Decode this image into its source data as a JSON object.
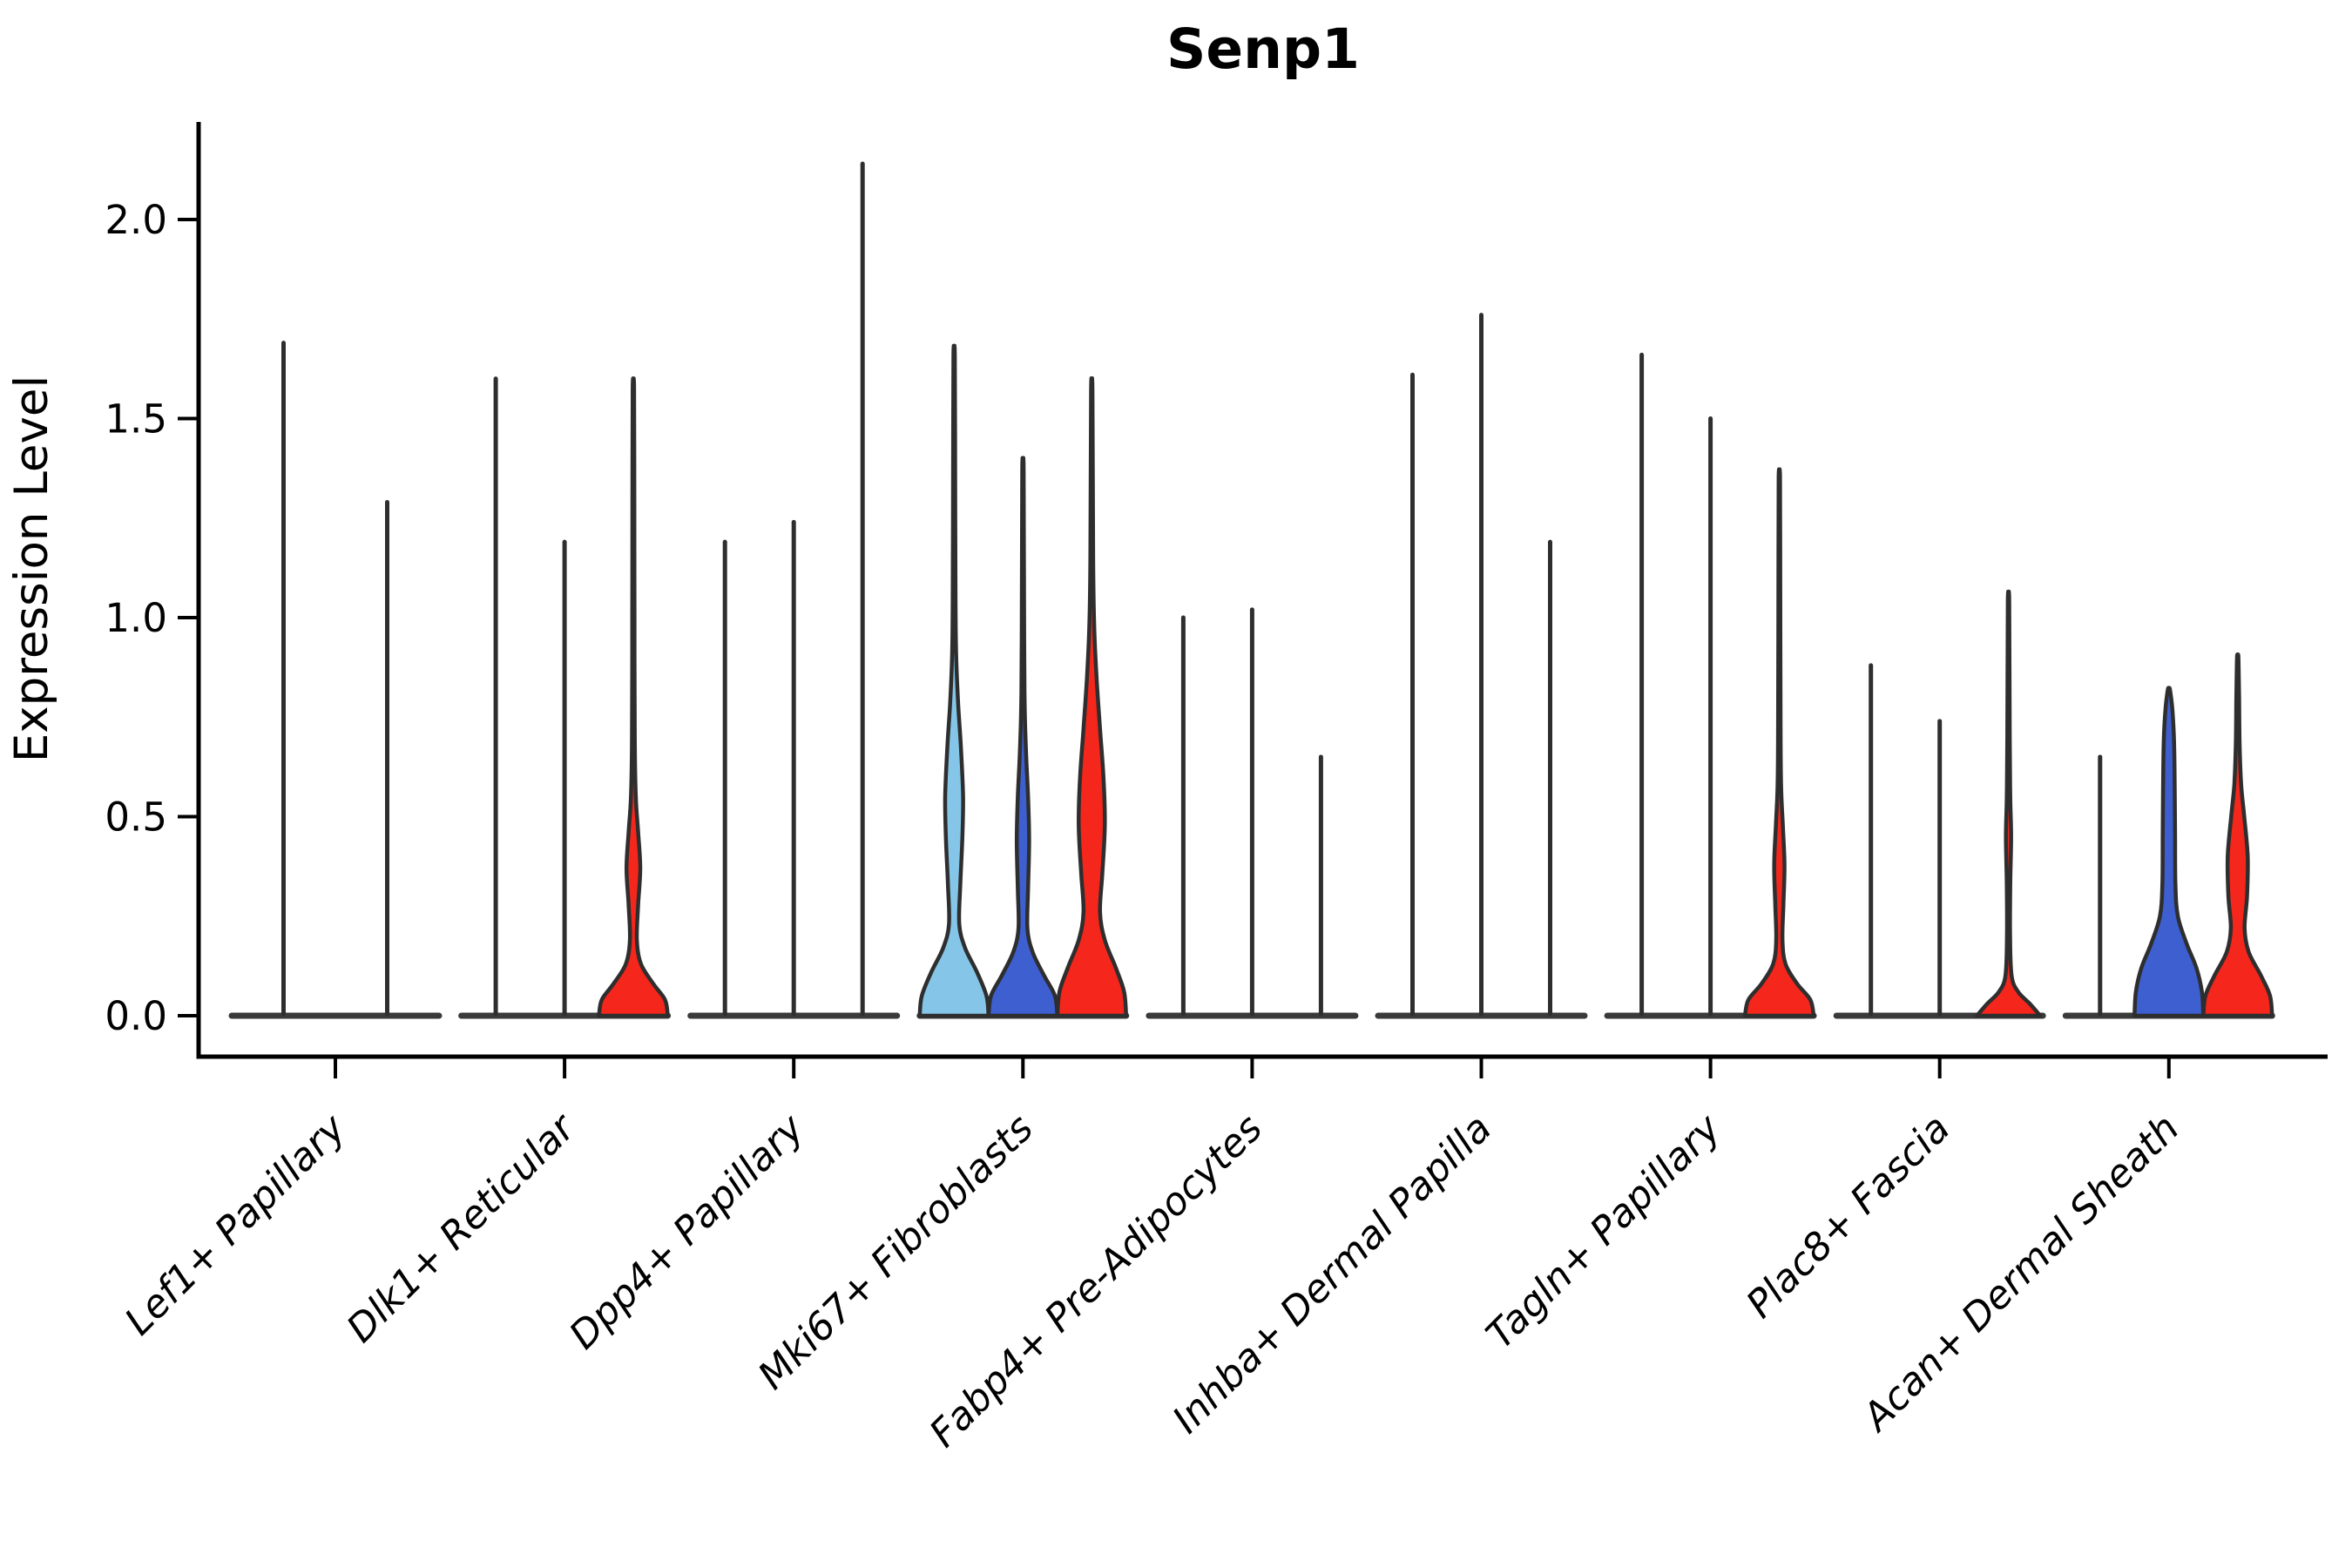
{
  "title": "Senp1",
  "y_axis": {
    "label": "Expression Level",
    "tick_labels": [
      "0.0",
      "0.5",
      "1.0",
      "1.5",
      "2.0"
    ],
    "tick_values": [
      0,
      0.5,
      1.0,
      1.5,
      2.0
    ]
  },
  "colors": {
    "red": "#F5261C",
    "blue": "#3D5FD0",
    "lightblue": "#85C6E8",
    "outline": "#2E2E2E",
    "baseline": "#3A3A3A",
    "axis": "#000000"
  },
  "chart_data": {
    "type": "violin",
    "title": "Senp1",
    "xlabel": "",
    "ylabel": "Expression Level",
    "ylim": [
      0,
      2.25
    ],
    "yticks": [
      0,
      0.5,
      1.0,
      1.5,
      2.0
    ],
    "grid": false,
    "legend": "none",
    "categories": [
      "Lef1+ Papillary",
      "Dlk1+ Reticular",
      "Dpp4+ Papillary",
      "Mki67+ Fibroblasts",
      "Fabp4+ Pre-Adipocytes",
      "Inhba+ Dermal Papilla",
      "Tagln+ Papillary",
      "Plac8+ Fascia",
      "Acan+ Dermal Sheath"
    ],
    "groups": [
      {
        "category": "Lef1+ Papillary",
        "violins": [
          {
            "max": 1.69,
            "fill": "none"
          },
          {
            "max": 1.29,
            "fill": "none"
          }
        ]
      },
      {
        "category": "Dlk1+ Reticular",
        "violins": [
          {
            "max": 1.6,
            "fill": "none"
          },
          {
            "max": 1.19,
            "fill": "none"
          },
          {
            "max": 1.58,
            "fill": "red",
            "profile": [
              [
                0,
                1.0
              ],
              [
                0.04,
                0.92
              ],
              [
                0.08,
                0.58
              ],
              [
                0.13,
                0.22
              ],
              [
                0.19,
                0.1
              ],
              [
                0.28,
                0.14
              ],
              [
                0.37,
                0.2
              ],
              [
                0.46,
                0.14
              ],
              [
                0.55,
                0.07
              ],
              [
                0.7,
                0.04
              ],
              [
                1.0,
                0.032
              ],
              [
                1.3,
                0.027
              ],
              [
                1.58,
                0.02
              ]
            ]
          }
        ]
      },
      {
        "category": "Dpp4+ Papillary",
        "violins": [
          {
            "max": 1.19,
            "fill": "none"
          },
          {
            "max": 1.24,
            "fill": "none"
          },
          {
            "max": 2.14,
            "fill": "none"
          }
        ]
      },
      {
        "category": "Mki67+ Fibroblasts",
        "violins": [
          {
            "max": 1.66,
            "fill": "lightblue",
            "profile": [
              [
                0,
                1.0
              ],
              [
                0.05,
                0.94
              ],
              [
                0.11,
                0.66
              ],
              [
                0.17,
                0.32
              ],
              [
                0.23,
                0.15
              ],
              [
                0.33,
                0.18
              ],
              [
                0.45,
                0.24
              ],
              [
                0.55,
                0.26
              ],
              [
                0.67,
                0.2
              ],
              [
                0.78,
                0.12
              ],
              [
                0.9,
                0.06
              ],
              [
                1.05,
                0.04
              ],
              [
                1.35,
                0.03
              ],
              [
                1.66,
                0.02
              ]
            ]
          },
          {
            "max": 1.37,
            "fill": "blue",
            "profile": [
              [
                0,
                1.0
              ],
              [
                0.05,
                0.93
              ],
              [
                0.1,
                0.62
              ],
              [
                0.16,
                0.28
              ],
              [
                0.22,
                0.13
              ],
              [
                0.32,
                0.15
              ],
              [
                0.44,
                0.18
              ],
              [
                0.55,
                0.15
              ],
              [
                0.66,
                0.09
              ],
              [
                0.78,
                0.05
              ],
              [
                0.95,
                0.035
              ],
              [
                1.37,
                0.02
              ]
            ]
          },
          {
            "max": 1.57,
            "fill": "red",
            "profile": [
              [
                0,
                1.0
              ],
              [
                0.06,
                0.94
              ],
              [
                0.12,
                0.7
              ],
              [
                0.19,
                0.38
              ],
              [
                0.26,
                0.24
              ],
              [
                0.36,
                0.31
              ],
              [
                0.48,
                0.38
              ],
              [
                0.6,
                0.34
              ],
              [
                0.72,
                0.24
              ],
              [
                0.85,
                0.14
              ],
              [
                0.98,
                0.07
              ],
              [
                1.15,
                0.04
              ],
              [
                1.57,
                0.02
              ]
            ]
          }
        ]
      },
      {
        "category": "Fabp4+ Pre-Adipocytes",
        "violins": [
          {
            "max": 1.0,
            "fill": "none"
          },
          {
            "max": 1.02,
            "fill": "none"
          },
          {
            "max": 0.65,
            "fill": "none"
          }
        ]
      },
      {
        "category": "Inhba+ Dermal Papilla",
        "violins": [
          {
            "max": 1.61,
            "fill": "none"
          },
          {
            "max": 1.76,
            "fill": "none"
          },
          {
            "max": 1.19,
            "fill": "none"
          }
        ]
      },
      {
        "category": "Tagln+ Papillary",
        "violins": [
          {
            "max": 1.66,
            "fill": "none"
          },
          {
            "max": 1.5,
            "fill": "none"
          },
          {
            "max": 1.35,
            "fill": "red",
            "profile": [
              [
                0,
                1.0
              ],
              [
                0.04,
                0.9
              ],
              [
                0.08,
                0.52
              ],
              [
                0.13,
                0.18
              ],
              [
                0.19,
                0.09
              ],
              [
                0.28,
                0.12
              ],
              [
                0.38,
                0.15
              ],
              [
                0.48,
                0.1
              ],
              [
                0.58,
                0.05
              ],
              [
                0.75,
                0.035
              ],
              [
                1.05,
                0.028
              ],
              [
                1.35,
                0.02
              ]
            ]
          }
        ]
      },
      {
        "category": "Plac8+ Fascia",
        "violins": [
          {
            "max": 0.88,
            "fill": "none"
          },
          {
            "max": 0.74,
            "fill": "none"
          },
          {
            "max": 1.04,
            "fill": "red",
            "profile": [
              [
                0,
                0.92
              ],
              [
                0.03,
                0.62
              ],
              [
                0.06,
                0.28
              ],
              [
                0.1,
                0.09
              ],
              [
                0.2,
                0.045
              ],
              [
                0.33,
                0.05
              ],
              [
                0.45,
                0.075
              ],
              [
                0.55,
                0.05
              ],
              [
                0.7,
                0.035
              ],
              [
                1.04,
                0.02
              ]
            ]
          }
        ]
      },
      {
        "category": "Acan+ Dermal Sheath",
        "violins": [
          {
            "max": 0.65,
            "fill": "none"
          },
          {
            "max": 0.82,
            "fill": "blue",
            "profile": [
              [
                0,
                1.0
              ],
              [
                0.06,
                0.96
              ],
              [
                0.12,
                0.8
              ],
              [
                0.18,
                0.52
              ],
              [
                0.25,
                0.26
              ],
              [
                0.33,
                0.19
              ],
              [
                0.45,
                0.18
              ],
              [
                0.57,
                0.17
              ],
              [
                0.69,
                0.15
              ],
              [
                0.77,
                0.1
              ],
              [
                0.82,
                0.03
              ]
            ]
          },
          {
            "max": 0.9,
            "fill": "red",
            "profile": [
              [
                0,
                1.0
              ],
              [
                0.05,
                0.94
              ],
              [
                0.1,
                0.68
              ],
              [
                0.16,
                0.32
              ],
              [
                0.22,
                0.2
              ],
              [
                0.3,
                0.27
              ],
              [
                0.4,
                0.29
              ],
              [
                0.5,
                0.19
              ],
              [
                0.58,
                0.1
              ],
              [
                0.68,
                0.055
              ],
              [
                0.8,
                0.04
              ],
              [
                0.9,
                0.02
              ]
            ]
          }
        ]
      }
    ]
  }
}
